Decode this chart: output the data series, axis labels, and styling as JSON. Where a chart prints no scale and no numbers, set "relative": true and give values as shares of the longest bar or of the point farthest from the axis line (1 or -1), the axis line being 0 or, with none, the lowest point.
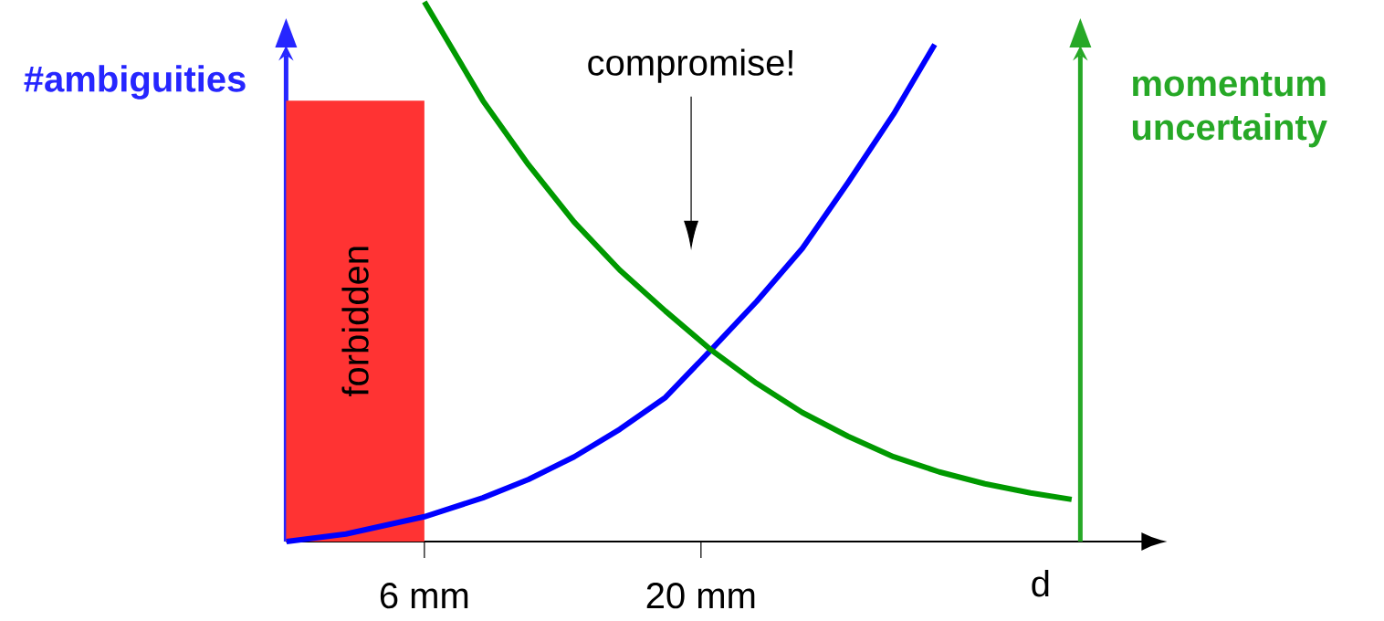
{
  "chart_data": {
    "type": "line",
    "relative": true,
    "xlabel": "d",
    "ylabel": "#ambiguities",
    "y2label": "momentum uncertainty",
    "xlim": [
      -1,
      39.2
    ],
    "xticks": [
      {
        "value": 6,
        "label": "6 mm"
      },
      {
        "value": 20,
        "label": "20 mm"
      }
    ],
    "marker": "none",
    "series": [
      {
        "color": "#0000ff",
        "x": [
          -0.98,
          2.03,
          6,
          8.96,
          11.27,
          13.58,
          15.89,
          18.2,
          20.51,
          22.82,
          25.13,
          27.44,
          29.75,
          31.83
        ],
        "values": [
          0,
          0.014,
          0.046,
          0.081,
          0.115,
          0.157,
          0.208,
          0.267,
          0.355,
          0.445,
          0.543,
          0.665,
          0.792,
          0.921
        ]
      },
      {
        "color": "#009900",
        "axis": "y2",
        "x": [
          6,
          8.96,
          11.27,
          13.58,
          15.89,
          18.2,
          20.51,
          22.82,
          25.13,
          27.44,
          29.75,
          32.06,
          34.37,
          36.68,
          38.76
        ],
        "values": [
          1.0,
          0.817,
          0.698,
          0.592,
          0.503,
          0.427,
          0.355,
          0.293,
          0.239,
          0.195,
          0.157,
          0.129,
          0.107,
          0.09,
          0.078
        ]
      }
    ],
    "bands": [
      {
        "axis": "x",
        "from": -1,
        "to": 6,
        "label": "forbidden",
        "color": "#ff3333"
      }
    ],
    "annotations": [
      "compromise!"
    ]
  }
}
